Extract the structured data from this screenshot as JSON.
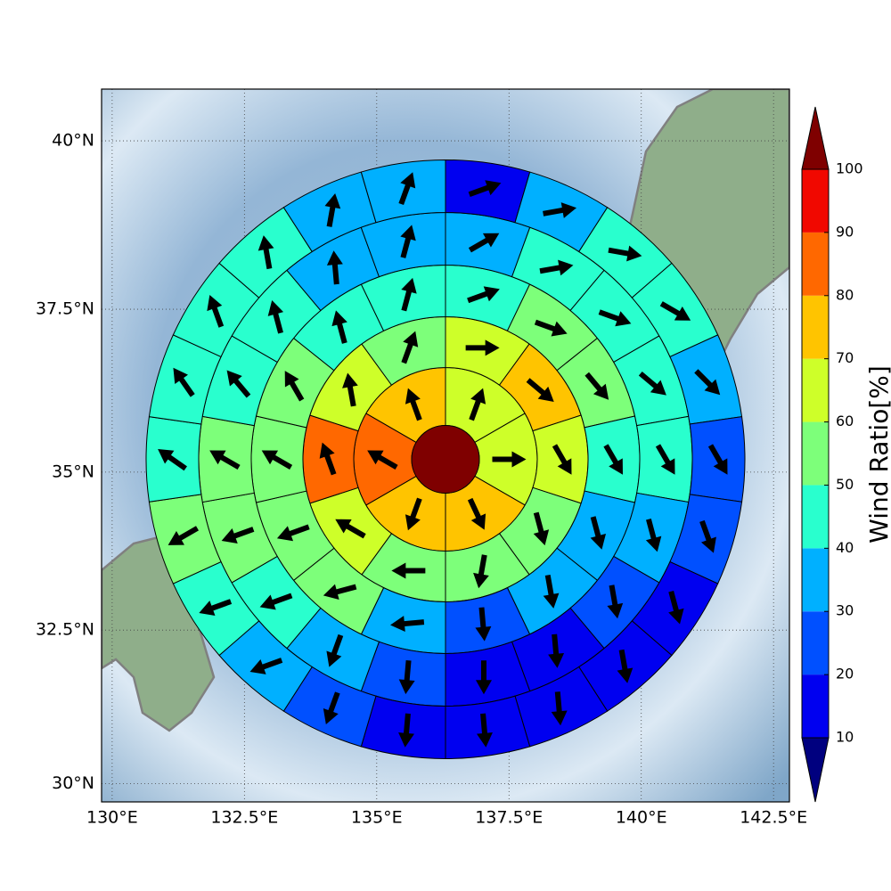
{
  "chart_data": {
    "type": "polar-sector-map",
    "projection": "mercator",
    "xlim": [
      129.8,
      142.8
    ],
    "ylim": [
      29.7,
      40.75
    ],
    "xticks": [
      {
        "value": 130,
        "label": "130°E"
      },
      {
        "value": 132.5,
        "label": "132.5°E"
      },
      {
        "value": 135,
        "label": "135°E"
      },
      {
        "value": 137.5,
        "label": "137.5°E"
      },
      {
        "value": 140,
        "label": "140°E"
      },
      {
        "value": 142.5,
        "label": "142.5°E"
      }
    ],
    "yticks": [
      {
        "value": 30,
        "label": "30°N"
      },
      {
        "value": 32.5,
        "label": "32.5°N"
      },
      {
        "value": 35,
        "label": "35°N"
      },
      {
        "value": 37.5,
        "label": "37.5°N"
      },
      {
        "value": 40,
        "label": "40°N"
      }
    ],
    "grid": true,
    "center": {
      "lon": 136.3,
      "lat": 35.2,
      "value": 100
    },
    "rings": [
      {
        "values": [
          65,
          65,
          75,
          75,
          85,
          75
        ],
        "directions": [
          20,
          90,
          155,
          200,
          300,
          340
        ]
      },
      {
        "values": [
          65,
          75,
          65,
          55,
          55,
          55,
          65,
          85,
          65,
          55
        ],
        "directions": [
          90,
          130,
          150,
          165,
          190,
          270,
          300,
          340,
          350,
          20
        ]
      },
      {
        "values": [
          45,
          55,
          55,
          45,
          35,
          35,
          25,
          35,
          55,
          55,
          55,
          55,
          45,
          45
        ],
        "directions": [
          70,
          110,
          140,
          150,
          165,
          170,
          175,
          265,
          255,
          250,
          300,
          330,
          345,
          15
        ]
      },
      {
        "values": [
          35,
          45,
          45,
          45,
          45,
          35,
          25,
          15,
          15,
          25,
          35,
          45,
          55,
          55,
          45,
          45,
          35,
          35
        ],
        "directions": [
          60,
          80,
          110,
          130,
          150,
          165,
          170,
          175,
          180,
          185,
          200,
          250,
          250,
          300,
          320,
          345,
          355,
          15
        ]
      },
      {
        "values": [
          15,
          35,
          45,
          45,
          35,
          25,
          25,
          15,
          15,
          15,
          15,
          15,
          25,
          35,
          45,
          55,
          45,
          45,
          45,
          45,
          35,
          35
        ],
        "directions": [
          70,
          80,
          100,
          120,
          135,
          150,
          160,
          165,
          170,
          175,
          175,
          185,
          200,
          250,
          250,
          240,
          305,
          325,
          340,
          350,
          10,
          20
        ]
      }
    ],
    "colorbar": {
      "label": "Wind Ratio[%]",
      "ticks": [
        10,
        20,
        30,
        40,
        50,
        60,
        70,
        80,
        90,
        100
      ],
      "colors": [
        "#00007f",
        "#0000f0",
        "#0050ff",
        "#00b0ff",
        "#29ffce",
        "#7dff7a",
        "#ceff29",
        "#ffc400",
        "#ff6800",
        "#f10800",
        "#7f0000"
      ]
    }
  }
}
